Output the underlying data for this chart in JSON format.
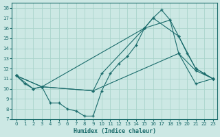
{
  "xlabel": "Humidex (Indice chaleur)",
  "bg_color": "#cce8e4",
  "line_color": "#1a6b6b",
  "grid_color": "#aad4cc",
  "xlim": [
    -0.5,
    23.5
  ],
  "ylim": [
    7,
    18.5
  ],
  "yticks": [
    7,
    8,
    9,
    10,
    11,
    12,
    13,
    14,
    15,
    16,
    17,
    18
  ],
  "xticks": [
    0,
    1,
    2,
    3,
    4,
    5,
    6,
    7,
    8,
    9,
    10,
    11,
    12,
    13,
    14,
    15,
    16,
    17,
    18,
    19,
    20,
    21,
    22,
    23
  ],
  "line1_x": [
    0,
    1,
    2,
    3,
    4,
    5,
    6,
    7,
    8,
    9,
    10,
    11,
    12,
    13,
    14,
    15,
    16,
    17,
    18,
    19,
    20,
    21,
    22,
    23
  ],
  "line1_y": [
    11.3,
    10.5,
    10.0,
    10.2,
    8.6,
    8.6,
    8.0,
    7.8,
    7.3,
    7.3,
    9.8,
    11.5,
    12.5,
    13.2,
    14.3,
    16.0,
    17.0,
    17.8,
    16.8,
    15.2,
    13.5,
    12.0,
    11.5,
    11.0
  ],
  "line2_x": [
    0,
    2,
    3,
    9,
    10,
    15,
    16,
    19,
    21,
    23
  ],
  "line2_y": [
    11.3,
    10.0,
    10.2,
    9.8,
    11.5,
    16.0,
    17.0,
    15.2,
    12.0,
    11.0
  ],
  "line3_x": [
    0,
    3,
    15,
    18,
    19,
    21,
    23
  ],
  "line3_y": [
    11.3,
    10.2,
    16.0,
    16.8,
    13.5,
    11.8,
    11.0
  ],
  "line4_x": [
    0,
    3,
    9,
    19,
    21,
    23
  ],
  "line4_y": [
    11.3,
    10.2,
    9.8,
    13.5,
    10.5,
    11.0
  ]
}
